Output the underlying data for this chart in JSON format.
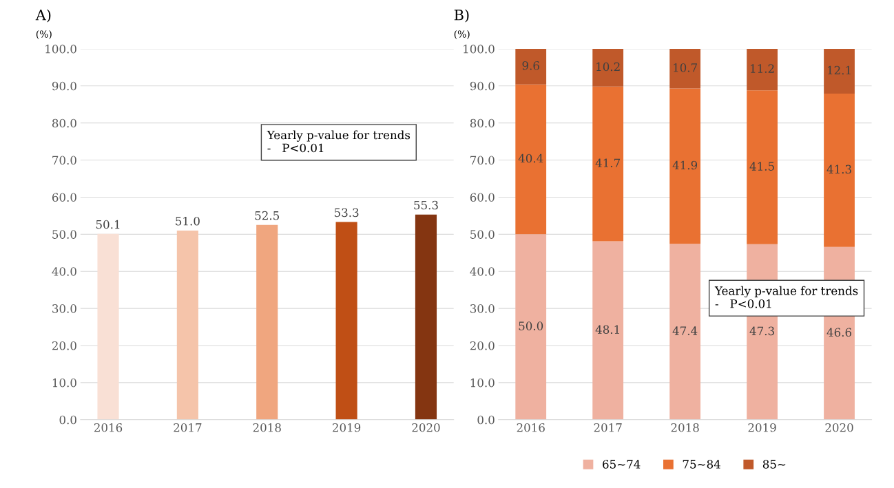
{
  "chart_data": [
    {
      "type": "bar",
      "title": "A)",
      "ylabel": "(%)",
      "categories": [
        "2016",
        "2017",
        "2018",
        "2019",
        "2020"
      ],
      "values": [
        50.1,
        51.0,
        52.5,
        53.3,
        55.3
      ],
      "value_labels": [
        "50.1",
        "51.0",
        "52.5",
        "53.3",
        "55.3"
      ],
      "colors": [
        "#f9e0d5",
        "#f5c4aa",
        "#f0a67f",
        "#c04f15",
        "#843511"
      ],
      "ylim": [
        0,
        100
      ],
      "yticks": [
        {
          "value": 0,
          "label": "0.0"
        },
        {
          "value": 10,
          "label": "10.0"
        },
        {
          "value": 20,
          "label": "20.0"
        },
        {
          "value": 30,
          "label": "30.0"
        },
        {
          "value": 40,
          "label": "40.0"
        },
        {
          "value": 50,
          "label": "50.0"
        },
        {
          "value": 60,
          "label": "60.0"
        },
        {
          "value": 70,
          "label": "70.0"
        },
        {
          "value": 80,
          "label": "80.0"
        },
        {
          "value": 90,
          "label": "90.0"
        },
        {
          "value": 100,
          "label": "100.0"
        }
      ],
      "grid": "y",
      "annotations": [
        "Yearly p-value for trends",
        "-   P<0.01"
      ]
    },
    {
      "type": "bar",
      "title": "B)",
      "ylabel": "(%)",
      "categories": [
        "2016",
        "2017",
        "2018",
        "2019",
        "2020"
      ],
      "stacked": true,
      "series": [
        {
          "name": "65~74",
          "color": "#efb1a0",
          "values": [
            50.0,
            48.1,
            47.4,
            47.3,
            46.6
          ],
          "value_labels": [
            "50.0",
            "48.1",
            "47.4",
            "47.3",
            "46.6"
          ]
        },
        {
          "name": "75~84",
          "color": "#e97132",
          "values": [
            40.4,
            41.7,
            41.9,
            41.5,
            41.3
          ],
          "value_labels": [
            "40.4",
            "41.7",
            "41.9",
            "41.5",
            "41.3"
          ]
        },
        {
          "name": "85~",
          "color": "#c0592a",
          "values": [
            9.6,
            10.2,
            10.7,
            11.2,
            12.1
          ],
          "value_labels": [
            "9.6",
            "10.2",
            "10.7",
            "11.2",
            "12.1"
          ]
        }
      ],
      "ylim": [
        0,
        100
      ],
      "yticks": [
        {
          "value": 0,
          "label": "0.0"
        },
        {
          "value": 10,
          "label": "10.0"
        },
        {
          "value": 20,
          "label": "20.0"
        },
        {
          "value": 30,
          "label": "30.0"
        },
        {
          "value": 40,
          "label": "40.0"
        },
        {
          "value": 50,
          "label": "50.0"
        },
        {
          "value": 60,
          "label": "60.0"
        },
        {
          "value": 70,
          "label": "70.0"
        },
        {
          "value": 80,
          "label": "80.0"
        },
        {
          "value": 90,
          "label": "90.0"
        },
        {
          "value": 100,
          "label": "100.0"
        }
      ],
      "grid": "y",
      "legend": "bottom",
      "annotations": [
        "Yearly p-value for trends",
        "-   P<0.01"
      ]
    }
  ]
}
